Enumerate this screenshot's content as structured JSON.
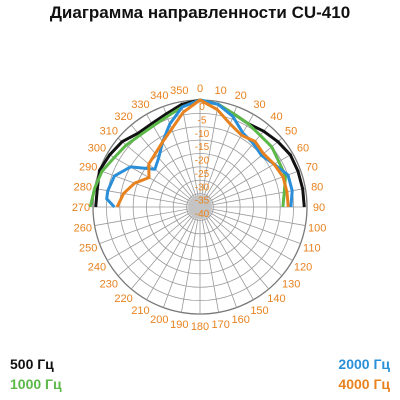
{
  "title": "Диаграмма направленности CU-410",
  "chart_data": {
    "type": "polar-line",
    "title": "Диаграмма направленности CU-410",
    "angle_labels": [
      "0",
      "10",
      "20",
      "30",
      "40",
      "50",
      "60",
      "70",
      "80",
      "90",
      "100",
      "110",
      "120",
      "130",
      "140",
      "150",
      "160",
      "170",
      "180",
      "190",
      "200",
      "210",
      "220",
      "230",
      "240",
      "250",
      "260",
      "270",
      "280",
      "290",
      "300",
      "310",
      "320",
      "330",
      "340",
      "350"
    ],
    "radial_labels": [
      "0",
      "-5",
      "-10",
      "-15",
      "-20",
      "-25",
      "-30",
      "-35",
      "-40"
    ],
    "radial_range": [
      -40,
      0
    ],
    "grid": true,
    "angle_label_color": "#e8821e",
    "radial_label_color": "#e8821e",
    "series": [
      {
        "name": "500 Гц",
        "color": "#111111",
        "points": [
          [
            270,
            -1
          ],
          [
            280,
            -1
          ],
          [
            290,
            0
          ],
          [
            300,
            -1
          ],
          [
            310,
            -2
          ],
          [
            320,
            -4
          ],
          [
            330,
            -4
          ],
          [
            340,
            -3
          ],
          [
            350,
            -1
          ],
          [
            0,
            0
          ],
          [
            10,
            -1
          ],
          [
            20,
            -3
          ],
          [
            30,
            -4
          ],
          [
            40,
            -3
          ],
          [
            50,
            -2
          ],
          [
            60,
            -1
          ],
          [
            70,
            -1
          ],
          [
            80,
            -1
          ],
          [
            90,
            -1
          ]
        ]
      },
      {
        "name": "1000 Гц",
        "color": "#5cb848",
        "points": [
          [
            270,
            1
          ],
          [
            280,
            0
          ],
          [
            290,
            -1
          ],
          [
            300,
            -3
          ],
          [
            310,
            -4
          ],
          [
            320,
            -5
          ],
          [
            330,
            -5
          ],
          [
            340,
            -4
          ],
          [
            350,
            -2
          ],
          [
            0,
            0
          ],
          [
            10,
            -1
          ],
          [
            20,
            -3
          ],
          [
            30,
            -4
          ],
          [
            40,
            -5
          ],
          [
            50,
            -5
          ],
          [
            60,
            -6
          ],
          [
            70,
            -6
          ],
          [
            80,
            -8
          ],
          [
            90,
            -9
          ]
        ]
      },
      {
        "name": "2000 Гц",
        "color": "#2a8fd8",
        "points": [
          [
            270,
            -8
          ],
          [
            275,
            -5
          ],
          [
            280,
            -5
          ],
          [
            290,
            -6
          ],
          [
            300,
            -10
          ],
          [
            310,
            -18
          ],
          [
            320,
            -16
          ],
          [
            330,
            -12
          ],
          [
            340,
            -7
          ],
          [
            350,
            -2
          ],
          [
            0,
            0
          ],
          [
            10,
            -1
          ],
          [
            20,
            -4
          ],
          [
            30,
            -8
          ],
          [
            40,
            -9
          ],
          [
            50,
            -10
          ],
          [
            60,
            -8
          ],
          [
            70,
            -5
          ],
          [
            80,
            -5
          ],
          [
            90,
            -6
          ]
        ]
      },
      {
        "name": "4000 Гц",
        "color": "#e8821e",
        "points": [
          [
            270,
            -9
          ],
          [
            280,
            -11
          ],
          [
            290,
            -14
          ],
          [
            300,
            -18
          ],
          [
            310,
            -15
          ],
          [
            320,
            -14
          ],
          [
            330,
            -12
          ],
          [
            340,
            -9
          ],
          [
            350,
            -4
          ],
          [
            0,
            0
          ],
          [
            10,
            -3
          ],
          [
            20,
            -7
          ],
          [
            30,
            -9
          ],
          [
            40,
            -8
          ],
          [
            50,
            -9
          ],
          [
            60,
            -8
          ],
          [
            70,
            -7
          ],
          [
            80,
            -7
          ],
          [
            90,
            -7
          ]
        ]
      }
    ]
  }
}
